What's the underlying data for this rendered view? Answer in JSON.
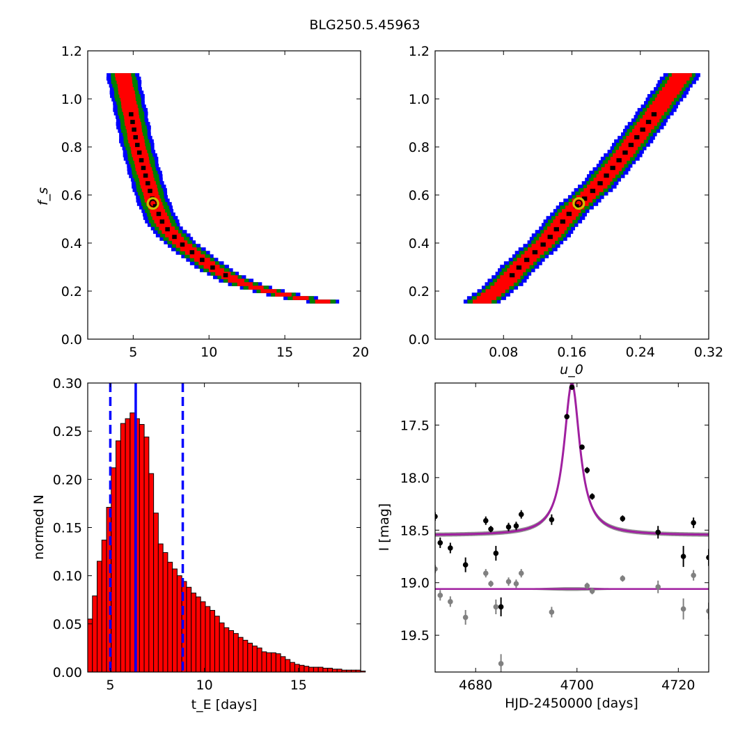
{
  "title": "BLG250.5.45963",
  "colors": {
    "red": "#ff0000",
    "green": "#008000",
    "blue": "#0000ff",
    "black": "#000000",
    "gray": "#808080",
    "magenta": "#a020a0",
    "marker": "#c8c800"
  },
  "chart_data": [
    {
      "type": "heatmap",
      "panel": "top-left",
      "xlabel": "",
      "ylabel": "f_s",
      "xlim": [
        2,
        20
      ],
      "ylim": [
        0.0,
        1.2
      ],
      "xticks": [
        "5",
        "10",
        "15",
        "20"
      ],
      "yticks": [
        "0.0",
        "0.2",
        "0.4",
        "0.6",
        "0.8",
        "1.0",
        "1.2"
      ],
      "levels": [
        "black",
        "red",
        "green",
        "blue"
      ],
      "ridge": [
        {
          "x": 4.3,
          "y": 1.1
        },
        {
          "x": 4.8,
          "y": 0.95
        },
        {
          "x": 5.2,
          "y": 0.82
        },
        {
          "x": 5.7,
          "y": 0.7
        },
        {
          "x": 6.3,
          "y": 0.57
        },
        {
          "x": 7.0,
          "y": 0.47
        },
        {
          "x": 8.0,
          "y": 0.4
        },
        {
          "x": 9.2,
          "y": 0.34
        },
        {
          "x": 10.5,
          "y": 0.28
        },
        {
          "x": 12.0,
          "y": 0.23
        },
        {
          "x": 13.5,
          "y": 0.2
        },
        {
          "x": 15.5,
          "y": 0.17
        },
        {
          "x": 17.5,
          "y": 0.15
        }
      ],
      "best_fit": {
        "x": 6.3,
        "y": 0.565
      }
    },
    {
      "type": "heatmap",
      "panel": "top-right",
      "xlabel": "u_0",
      "ylabel": "",
      "xlim": [
        0.0,
        0.32
      ],
      "ylim": [
        0.0,
        1.2
      ],
      "xticks": [
        "0.08",
        "0.16",
        "0.24",
        "0.32"
      ],
      "yticks": [
        "0.0",
        "0.2",
        "0.4",
        "0.6",
        "0.8",
        "1.0",
        "1.2"
      ],
      "levels": [
        "black",
        "red",
        "green",
        "blue"
      ],
      "ridge": [
        {
          "x": 0.055,
          "y": 0.15
        },
        {
          "x": 0.08,
          "y": 0.22
        },
        {
          "x": 0.1,
          "y": 0.3
        },
        {
          "x": 0.13,
          "y": 0.4
        },
        {
          "x": 0.16,
          "y": 0.53
        },
        {
          "x": 0.19,
          "y": 0.63
        },
        {
          "x": 0.22,
          "y": 0.76
        },
        {
          "x": 0.25,
          "y": 0.9
        },
        {
          "x": 0.28,
          "y": 1.05
        },
        {
          "x": 0.29,
          "y": 1.1
        }
      ],
      "best_fit": {
        "x": 0.168,
        "y": 0.565
      }
    },
    {
      "type": "bar",
      "panel": "bottom-left",
      "xlabel": "t_E  [days]",
      "ylabel": "normed N",
      "xlim": [
        3.8,
        18.3
      ],
      "ylim": [
        0.0,
        0.3
      ],
      "xticks": [
        "5",
        "10",
        "15"
      ],
      "yticks": [
        "0.00",
        "0.05",
        "0.10",
        "0.15",
        "0.20",
        "0.25",
        "0.30"
      ],
      "bin_start": 3.8,
      "bin_width": 0.25,
      "values": [
        0.055,
        0.079,
        0.115,
        0.137,
        0.171,
        0.212,
        0.24,
        0.258,
        0.263,
        0.269,
        0.263,
        0.257,
        0.244,
        0.206,
        0.165,
        0.133,
        0.124,
        0.114,
        0.107,
        0.1,
        0.094,
        0.088,
        0.082,
        0.078,
        0.073,
        0.068,
        0.064,
        0.058,
        0.051,
        0.046,
        0.043,
        0.04,
        0.036,
        0.033,
        0.03,
        0.027,
        0.025,
        0.021,
        0.02,
        0.02,
        0.019,
        0.016,
        0.013,
        0.01,
        0.008,
        0.007,
        0.006,
        0.005,
        0.005,
        0.005,
        0.004,
        0.004,
        0.003,
        0.003,
        0.002,
        0.002,
        0.002,
        0.002,
        0.001
      ],
      "vlines": [
        {
          "x": 5.0,
          "style": "dashed"
        },
        {
          "x": 6.35,
          "style": "solid"
        },
        {
          "x": 8.85,
          "style": "dashed"
        }
      ]
    },
    {
      "type": "scatter",
      "panel": "bottom-right",
      "xlabel": "HJD-2450000 [days]",
      "ylabel": "I [mag]",
      "xlim": [
        4672,
        4726
      ],
      "ylim": [
        19.85,
        17.1
      ],
      "xticks": [
        "4680",
        "4700",
        "4720"
      ],
      "yticks": [
        "17.5",
        "18.0",
        "18.5",
        "19.0",
        "19.5"
      ],
      "model": {
        "t0": 4699.0,
        "baseline": 18.55,
        "peak": 17.1,
        "tau": 1.9
      },
      "residual_baseline": 19.06,
      "series": [
        {
          "color": "black",
          "points": [
            {
              "x": 4672,
              "y": 18.37,
              "e": 0.04
            },
            {
              "x": 4673,
              "y": 18.62,
              "e": 0.05
            },
            {
              "x": 4675,
              "y": 18.67,
              "e": 0.05
            },
            {
              "x": 4678,
              "y": 18.83,
              "e": 0.07
            },
            {
              "x": 4682,
              "y": 18.41,
              "e": 0.04
            },
            {
              "x": 4683,
              "y": 18.49,
              "e": 0.03
            },
            {
              "x": 4684,
              "y": 18.72,
              "e": 0.07
            },
            {
              "x": 4685,
              "y": 19.23,
              "e": 0.09
            },
            {
              "x": 4686.5,
              "y": 18.47,
              "e": 0.04
            },
            {
              "x": 4688,
              "y": 18.46,
              "e": 0.04
            },
            {
              "x": 4689,
              "y": 18.35,
              "e": 0.04
            },
            {
              "x": 4695,
              "y": 18.4,
              "e": 0.05
            },
            {
              "x": 4698,
              "y": 17.42,
              "e": 0.02
            },
            {
              "x": 4699,
              "y": 17.14,
              "e": 0.02
            },
            {
              "x": 4701,
              "y": 17.71,
              "e": 0.02
            },
            {
              "x": 4702,
              "y": 17.93,
              "e": 0.03
            },
            {
              "x": 4703,
              "y": 18.18,
              "e": 0.03
            },
            {
              "x": 4709,
              "y": 18.39,
              "e": 0.03
            },
            {
              "x": 4716,
              "y": 18.52,
              "e": 0.06
            },
            {
              "x": 4721,
              "y": 18.75,
              "e": 0.1
            },
            {
              "x": 4723,
              "y": 18.43,
              "e": 0.05
            },
            {
              "x": 4726,
              "y": 18.76,
              "e": 0.08
            }
          ]
        },
        {
          "color": "gray",
          "points": [
            {
              "x": 4672,
              "y": 18.87,
              "e": 0.04
            },
            {
              "x": 4673,
              "y": 19.12,
              "e": 0.05
            },
            {
              "x": 4675,
              "y": 19.18,
              "e": 0.05
            },
            {
              "x": 4678,
              "y": 19.33,
              "e": 0.07
            },
            {
              "x": 4682,
              "y": 18.91,
              "e": 0.04
            },
            {
              "x": 4683,
              "y": 19.01,
              "e": 0.03
            },
            {
              "x": 4684,
              "y": 19.23,
              "e": 0.07
            },
            {
              "x": 4685,
              "y": 19.77,
              "e": 0.09
            },
            {
              "x": 4686.5,
              "y": 18.99,
              "e": 0.04
            },
            {
              "x": 4688,
              "y": 19.01,
              "e": 0.04
            },
            {
              "x": 4689,
              "y": 18.91,
              "e": 0.04
            },
            {
              "x": 4695,
              "y": 19.28,
              "e": 0.05
            },
            {
              "x": 4702,
              "y": 19.03,
              "e": 0.03
            },
            {
              "x": 4703,
              "y": 19.08,
              "e": 0.03
            },
            {
              "x": 4709,
              "y": 18.96,
              "e": 0.03
            },
            {
              "x": 4716,
              "y": 19.04,
              "e": 0.06
            },
            {
              "x": 4721,
              "y": 19.25,
              "e": 0.1
            },
            {
              "x": 4723,
              "y": 18.93,
              "e": 0.05
            },
            {
              "x": 4726,
              "y": 19.27,
              "e": 0.08
            }
          ]
        }
      ]
    }
  ]
}
